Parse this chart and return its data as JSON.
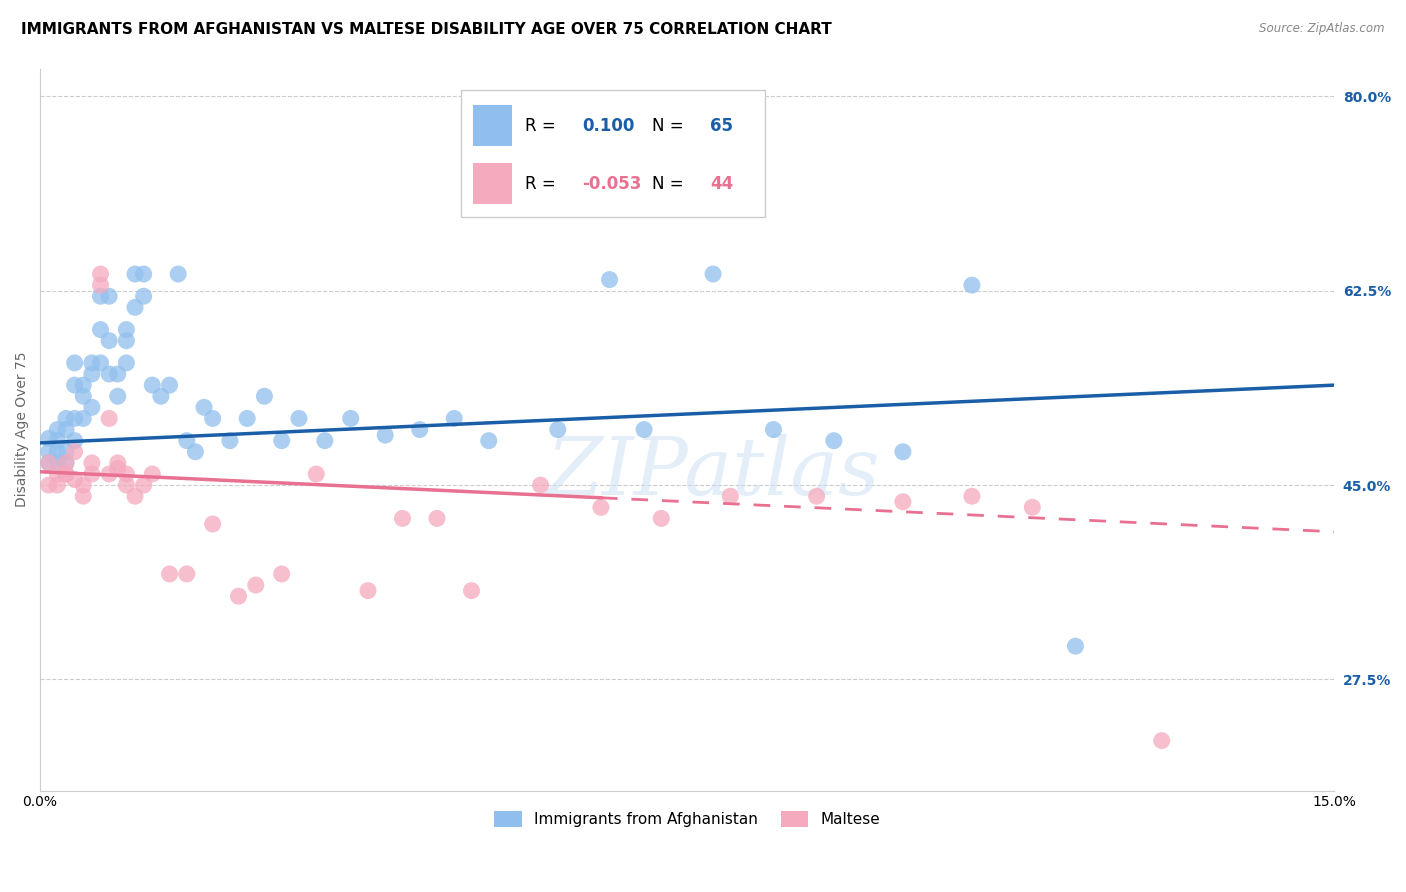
{
  "title": "IMMIGRANTS FROM AFGHANISTAN VS MALTESE DISABILITY AGE OVER 75 CORRELATION CHART",
  "source": "Source: ZipAtlas.com",
  "ylabel": "Disability Age Over 75",
  "xlim": [
    0.0,
    0.15
  ],
  "ylim": [
    0.175,
    0.825
  ],
  "xtick_positions": [
    0.0,
    0.025,
    0.05,
    0.075,
    0.1,
    0.125,
    0.15
  ],
  "xticklabels": [
    "0.0%",
    "",
    "",
    "",
    "",
    "",
    "15.0%"
  ],
  "yticks_right": [
    0.275,
    0.45,
    0.625,
    0.8
  ],
  "ytick_right_labels": [
    "27.5%",
    "45.0%",
    "62.5%",
    "80.0%"
  ],
  "blue_color": "#90BFED",
  "pink_color": "#F5AABE",
  "blue_line_color": "#1A5EA8",
  "pink_line_color": "#E87090",
  "blue_trend": [
    0.488,
    0.54
  ],
  "pink_trend": [
    0.462,
    0.408
  ],
  "pink_trend_solid_end": 0.065,
  "blue_x": [
    0.001,
    0.001,
    0.001,
    0.002,
    0.002,
    0.002,
    0.002,
    0.003,
    0.003,
    0.003,
    0.003,
    0.004,
    0.004,
    0.004,
    0.004,
    0.005,
    0.005,
    0.005,
    0.006,
    0.006,
    0.006,
    0.007,
    0.007,
    0.007,
    0.008,
    0.008,
    0.008,
    0.009,
    0.009,
    0.01,
    0.01,
    0.01,
    0.011,
    0.011,
    0.012,
    0.012,
    0.013,
    0.014,
    0.015,
    0.016,
    0.017,
    0.018,
    0.019,
    0.02,
    0.022,
    0.024,
    0.026,
    0.028,
    0.03,
    0.033,
    0.036,
    0.04,
    0.044,
    0.048,
    0.052,
    0.056,
    0.06,
    0.066,
    0.07,
    0.078,
    0.085,
    0.092,
    0.1,
    0.108,
    0.12
  ],
  "blue_y": [
    0.48,
    0.492,
    0.47,
    0.47,
    0.48,
    0.49,
    0.5,
    0.48,
    0.47,
    0.5,
    0.51,
    0.51,
    0.49,
    0.54,
    0.56,
    0.51,
    0.53,
    0.54,
    0.52,
    0.55,
    0.56,
    0.56,
    0.59,
    0.62,
    0.55,
    0.58,
    0.62,
    0.55,
    0.53,
    0.59,
    0.56,
    0.58,
    0.61,
    0.64,
    0.62,
    0.64,
    0.54,
    0.53,
    0.54,
    0.64,
    0.49,
    0.48,
    0.52,
    0.51,
    0.49,
    0.51,
    0.53,
    0.49,
    0.51,
    0.49,
    0.51,
    0.495,
    0.5,
    0.51,
    0.49,
    0.72,
    0.5,
    0.635,
    0.5,
    0.64,
    0.5,
    0.49,
    0.48,
    0.63,
    0.305
  ],
  "pink_x": [
    0.001,
    0.001,
    0.002,
    0.002,
    0.003,
    0.003,
    0.003,
    0.004,
    0.004,
    0.005,
    0.005,
    0.006,
    0.006,
    0.007,
    0.007,
    0.008,
    0.008,
    0.009,
    0.009,
    0.01,
    0.01,
    0.011,
    0.012,
    0.013,
    0.015,
    0.017,
    0.02,
    0.023,
    0.025,
    0.028,
    0.032,
    0.038,
    0.042,
    0.046,
    0.05,
    0.058,
    0.065,
    0.072,
    0.08,
    0.09,
    0.1,
    0.108,
    0.115,
    0.13
  ],
  "pink_y": [
    0.47,
    0.45,
    0.46,
    0.45,
    0.46,
    0.47,
    0.46,
    0.48,
    0.455,
    0.44,
    0.45,
    0.46,
    0.47,
    0.64,
    0.63,
    0.46,
    0.51,
    0.47,
    0.465,
    0.46,
    0.45,
    0.44,
    0.45,
    0.46,
    0.37,
    0.37,
    0.415,
    0.35,
    0.36,
    0.37,
    0.46,
    0.355,
    0.42,
    0.42,
    0.355,
    0.45,
    0.43,
    0.42,
    0.44,
    0.44,
    0.435,
    0.44,
    0.43,
    0.22
  ],
  "watermark_text": "ZIPatlas",
  "title_fontsize": 11,
  "axis_label_fontsize": 10,
  "tick_fontsize": 10
}
